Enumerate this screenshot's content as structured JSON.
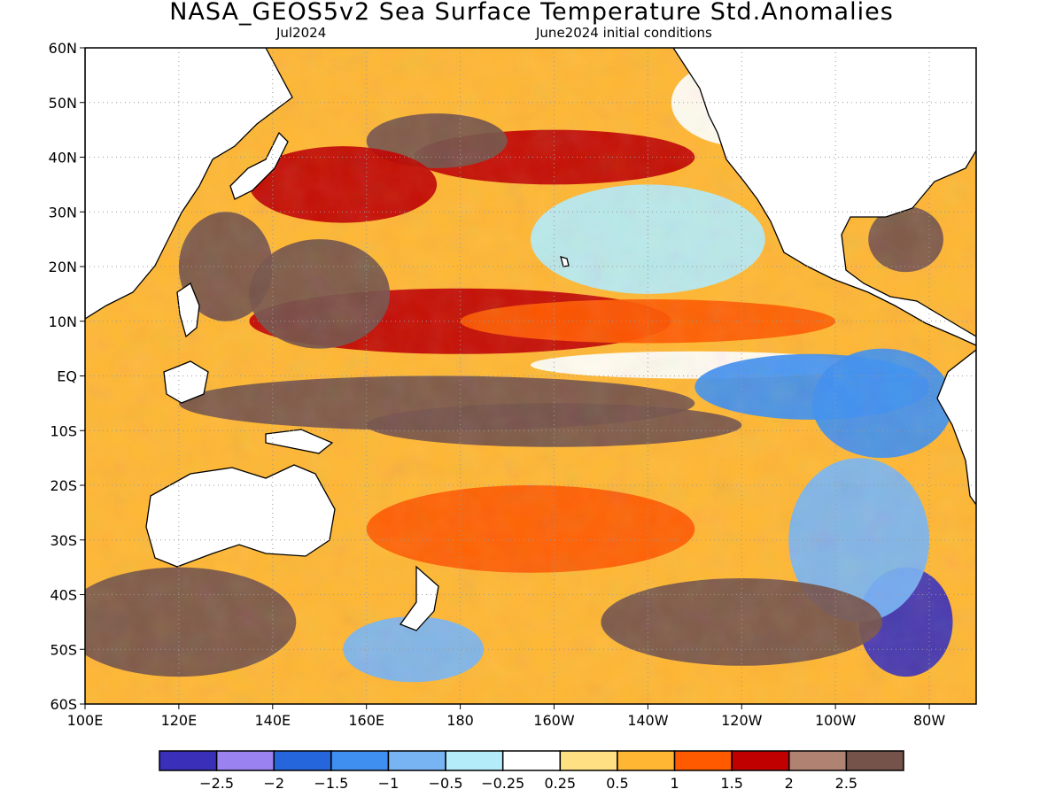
{
  "header": {
    "title": "NASA_GEOS5v2 Sea Surface Temperature Std.Anomalies",
    "valid_month": "Jul2024",
    "initial_conditions": "June2024 initial conditions"
  },
  "map": {
    "lon_range": [
      100,
      290
    ],
    "lat_range": [
      -60,
      60
    ],
    "lat_labels": [
      {
        "lat": 60,
        "text": "60N"
      },
      {
        "lat": 50,
        "text": "50N"
      },
      {
        "lat": 40,
        "text": "40N"
      },
      {
        "lat": 30,
        "text": "30N"
      },
      {
        "lat": 20,
        "text": "20N"
      },
      {
        "lat": 10,
        "text": "10N"
      },
      {
        "lat": 0,
        "text": "EQ"
      },
      {
        "lat": -10,
        "text": "10S"
      },
      {
        "lat": -20,
        "text": "20S"
      },
      {
        "lat": -30,
        "text": "30S"
      },
      {
        "lat": -40,
        "text": "40S"
      },
      {
        "lat": -50,
        "text": "50S"
      },
      {
        "lat": -60,
        "text": "60S"
      }
    ],
    "lon_labels": [
      {
        "lon": 100,
        "text": "100E"
      },
      {
        "lon": 120,
        "text": "120E"
      },
      {
        "lon": 140,
        "text": "140E"
      },
      {
        "lon": 160,
        "text": "160E"
      },
      {
        "lon": 180,
        "text": "180"
      },
      {
        "lon": 200,
        "text": "160W"
      },
      {
        "lon": 220,
        "text": "140W"
      },
      {
        "lon": 240,
        "text": "120W"
      },
      {
        "lon": 260,
        "text": "100W"
      },
      {
        "lon": 280,
        "text": "80W"
      }
    ],
    "grid": "dotted",
    "land_color": "#ffffff"
  },
  "colorbar": {
    "colors": [
      "#3a2fb8",
      "#9a82f0",
      "#2566dc",
      "#3f8ff0",
      "#78b4f4",
      "#b4ecfa",
      "#ffffff",
      "#ffe082",
      "#ffb733",
      "#ff5a00",
      "#c00000",
      "#b08272",
      "#75524a"
    ],
    "labels": [
      "−2.5",
      "−2",
      "−1.5",
      "−1",
      "−0.5",
      "−0.25",
      "0.25",
      "0.5",
      "1",
      "1.5",
      "2",
      "2.5"
    ]
  },
  "anomaly_features": [
    {
      "lon": 175,
      "lat": -5,
      "rx": 55,
      "ry": 5,
      "level": 2.6
    },
    {
      "lon": 200,
      "lat": -9,
      "rx": 40,
      "ry": 4,
      "level": 2.6
    },
    {
      "lon": 180,
      "lat": 10,
      "rx": 45,
      "ry": 6,
      "level": 1.8
    },
    {
      "lon": 150,
      "lat": 15,
      "rx": 15,
      "ry": 10,
      "level": 2.6
    },
    {
      "lon": 220,
      "lat": 10,
      "rx": 40,
      "ry": 4,
      "level": 1.2
    },
    {
      "lon": 230,
      "lat": 2,
      "rx": 35,
      "ry": 2.5,
      "level": 0.1
    },
    {
      "lon": 255,
      "lat": -2,
      "rx": 25,
      "ry": 6,
      "level": -1.2
    },
    {
      "lon": 270,
      "lat": -5,
      "rx": 15,
      "ry": 10,
      "level": -1.3
    },
    {
      "lon": 275,
      "lat": -45,
      "rx": 10,
      "ry": 10,
      "level": -2.6
    },
    {
      "lon": 265,
      "lat": -30,
      "rx": 15,
      "ry": 15,
      "level": -0.8
    },
    {
      "lon": 200,
      "lat": 40,
      "rx": 30,
      "ry": 5,
      "level": 1.7
    },
    {
      "lon": 175,
      "lat": 43,
      "rx": 15,
      "ry": 5,
      "level": 2.6
    },
    {
      "lon": 155,
      "lat": 35,
      "rx": 20,
      "ry": 7,
      "level": 1.8
    },
    {
      "lon": 220,
      "lat": 25,
      "rx": 25,
      "ry": 10,
      "level": -0.4
    },
    {
      "lon": 240,
      "lat": 50,
      "rx": 15,
      "ry": 8,
      "level": 0.1
    },
    {
      "lon": 120,
      "lat": -45,
      "rx": 25,
      "ry": 10,
      "level": 2.6
    },
    {
      "lon": 240,
      "lat": -45,
      "rx": 30,
      "ry": 8,
      "level": 2.6
    },
    {
      "lon": 195,
      "lat": -28,
      "rx": 35,
      "ry": 8,
      "level": 1.0
    },
    {
      "lon": 170,
      "lat": -50,
      "rx": 15,
      "ry": 6,
      "level": -1.0
    },
    {
      "lon": 130,
      "lat": 20,
      "rx": 10,
      "ry": 10,
      "level": 2.6
    },
    {
      "lon": 275,
      "lat": 25,
      "rx": 8,
      "ry": 6,
      "level": 2.6
    }
  ]
}
